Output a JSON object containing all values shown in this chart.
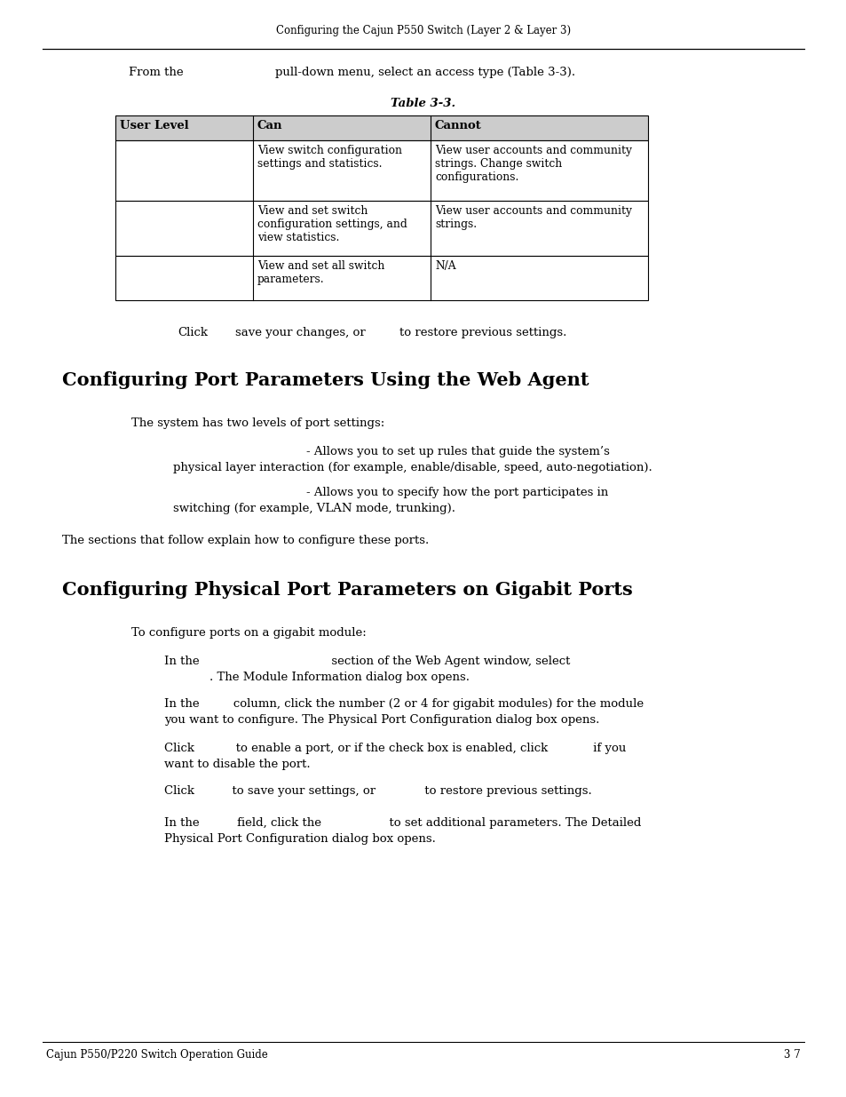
{
  "page_bg": "#ffffff",
  "header_text": "Configuring the Cajun P550 Switch (Layer 2 & Layer 3)",
  "intro_line1": "From the",
  "intro_line2": "pull-down menu, select an access type (Table 3-3).",
  "table_title": "Table 3-3.",
  "table_header": [
    "User Level",
    "Can",
    "Cannot"
  ],
  "table_rows": [
    [
      "",
      "View switch configuration\nsettings and statistics.",
      "View user accounts and community\nstrings. Change switch\nconfigurations."
    ],
    [
      "",
      "View and set switch\nconfiguration settings, and\nview statistics.",
      "View user accounts and community\nstrings."
    ],
    [
      "",
      "View and set all switch\nparameters.",
      "N/A"
    ]
  ],
  "click_line1": "Click",
  "click_line2": "save your changes, or",
  "click_line3": "to restore previous settings.",
  "section1_title": "Configuring Port Parameters Using the Web Agent",
  "section1_intro": "The system has two levels of port settings:",
  "section1_bullet1a": "- Allows you to set up rules that guide the system’s",
  "section1_bullet1b": "physical layer interaction (for example, enable/disable, speed, auto-negotiation).",
  "section1_bullet2a": "- Allows you to specify how the port participates in",
  "section1_bullet2b": "switching (for example, VLAN mode, trunking).",
  "section1_closing": "The sections that follow explain how to configure these ports.",
  "section2_title": "Configuring Physical Port Parameters on Gigabit Ports",
  "section2_intro": "To configure ports on a gigabit module:",
  "section2_p1a": "In the                                   section of the Web Agent window, select",
  "section2_p1b": "            . The Module Information dialog box opens.",
  "section2_p2a": "In the         column, click the number (2 or 4 for gigabit modules) for the module",
  "section2_p2b": "you want to configure. The Physical Port Configuration dialog box opens.",
  "section2_p3a": "Click           to enable a port, or if the check box is enabled, click            if you",
  "section2_p3b": "want to disable the port.",
  "section2_p4": "Click          to save your settings, or             to restore previous settings.",
  "section2_p5a": "In the          field, click the                  to set additional parameters. The Detailed",
  "section2_p5b": "Physical Port Configuration dialog box opens.",
  "footer_left": "Cajun P550/P220 Switch Operation Guide",
  "footer_right": "3 7"
}
